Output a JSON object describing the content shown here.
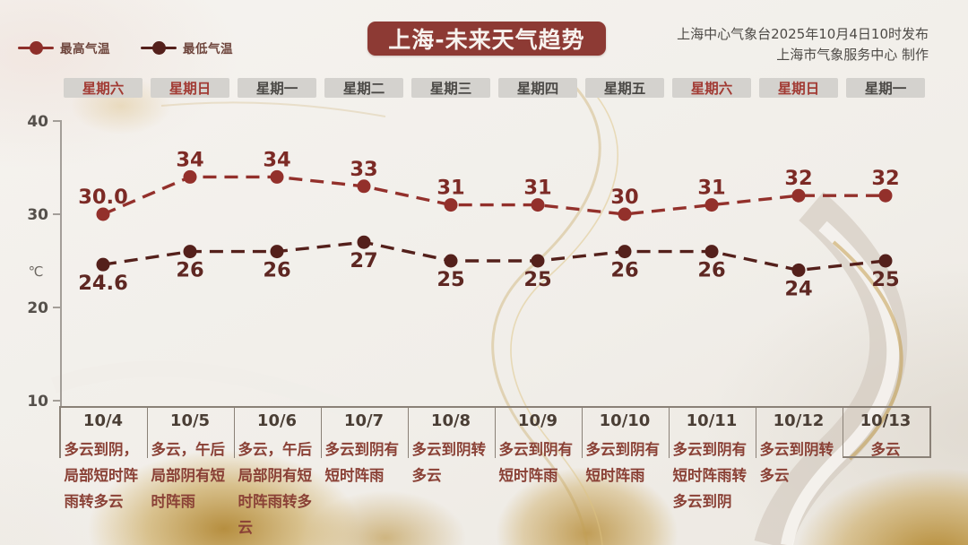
{
  "header": {
    "title": "上海-未来天气趋势",
    "publisher_line1": "上海中心气象台2025年10月4日10时发布",
    "publisher_line2": "上海市气象服务中心 制作"
  },
  "legend": {
    "max_label": "最高气温",
    "min_label": "最低气温"
  },
  "colors": {
    "title_bg": "#8d3a34",
    "max_series": "#93302b",
    "min_series": "#54201b",
    "weekend_text": "#a23b34",
    "weekday_text": "#4c4a47",
    "desc_text": "#8a4136",
    "axis": "#8f8a84"
  },
  "days": [
    {
      "weekday": "星期六",
      "date": "10/4",
      "desc": "多云到阴，局部短时阵雨转多云"
    },
    {
      "weekday": "星期日",
      "date": "10/5",
      "desc": "多云，午后局部阴有短时阵雨"
    },
    {
      "weekday": "星期一",
      "date": "10/6",
      "desc": "多云，午后局部阴有短时阵雨转多云"
    },
    {
      "weekday": "星期二",
      "date": "10/7",
      "desc": "多云到阴有短时阵雨"
    },
    {
      "weekday": "星期三",
      "date": "10/8",
      "desc": "多云到阴转多云"
    },
    {
      "weekday": "星期四",
      "date": "10/9",
      "desc": "多云到阴有短时阵雨"
    },
    {
      "weekday": "星期五",
      "date": "10/10",
      "desc": "多云到阴有短时阵雨"
    },
    {
      "weekday": "星期六",
      "date": "10/11",
      "desc": "多云到阴有短时阵雨转多云到阴"
    },
    {
      "weekday": "星期日",
      "date": "10/12",
      "desc": "多云到阴转多云"
    },
    {
      "weekday": "星期一",
      "date": "10/13",
      "desc": "多云"
    }
  ],
  "chart_data": {
    "type": "line",
    "title": "上海-未来天气趋势",
    "x": [
      "10/4",
      "10/5",
      "10/6",
      "10/7",
      "10/8",
      "10/9",
      "10/10",
      "10/11",
      "10/12",
      "10/13"
    ],
    "ylabel": "℃",
    "ylim": [
      10,
      40
    ],
    "yticks": [
      40,
      30,
      20,
      10
    ],
    "grid": false,
    "line_style": "dashed",
    "legend_position": "top-left",
    "series": [
      {
        "name": "最高气温",
        "values": [
          30.0,
          34,
          34,
          33,
          31,
          31,
          30,
          31,
          32,
          32
        ],
        "labels": [
          "30.0",
          "34",
          "34",
          "33",
          "31",
          "31",
          "30",
          "31",
          "32",
          "32"
        ],
        "color": "#93302b",
        "label_color": "#7c2a25",
        "label_position": "above"
      },
      {
        "name": "最低气温",
        "values": [
          24.6,
          26,
          26,
          27,
          25,
          25,
          26,
          26,
          24,
          25
        ],
        "labels": [
          "24.6",
          "26",
          "26",
          "27",
          "25",
          "25",
          "26",
          "26",
          "24",
          "25"
        ],
        "color": "#54201b",
        "label_color": "#5e2722",
        "label_position": "below"
      }
    ]
  }
}
